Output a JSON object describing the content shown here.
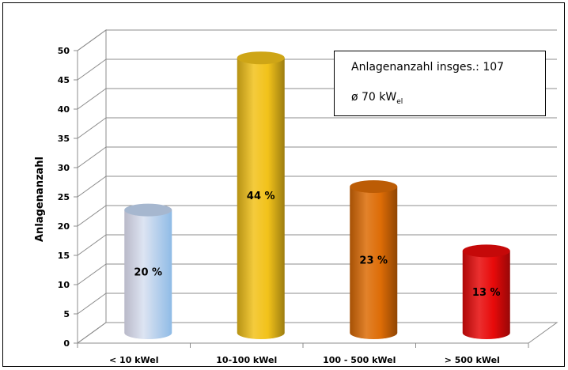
{
  "chart_data": {
    "type": "bar",
    "style": "3d-cylinder",
    "ylabel": "Anlagenanzahl",
    "ylim": [
      0,
      50
    ],
    "yticks": [
      0,
      5,
      10,
      15,
      20,
      25,
      30,
      35,
      40,
      45,
      50
    ],
    "grid": true,
    "categories": [
      "< 10 kWel",
      "10-100 kWel",
      "100 - 500 kWel",
      "> 500 kWel"
    ],
    "values": [
      21,
      47,
      25,
      14
    ],
    "data_labels": [
      "20 %",
      "44 %",
      "23 %",
      "13 %"
    ],
    "colors": [
      "#b8cbe6",
      "#f2c21a",
      "#dd6c06",
      "#e80a0a"
    ]
  },
  "info_box": {
    "line1": "Anlagenanzahl insges.: 107",
    "line2_main": "ø 70 kW",
    "line2_sub": "el"
  }
}
